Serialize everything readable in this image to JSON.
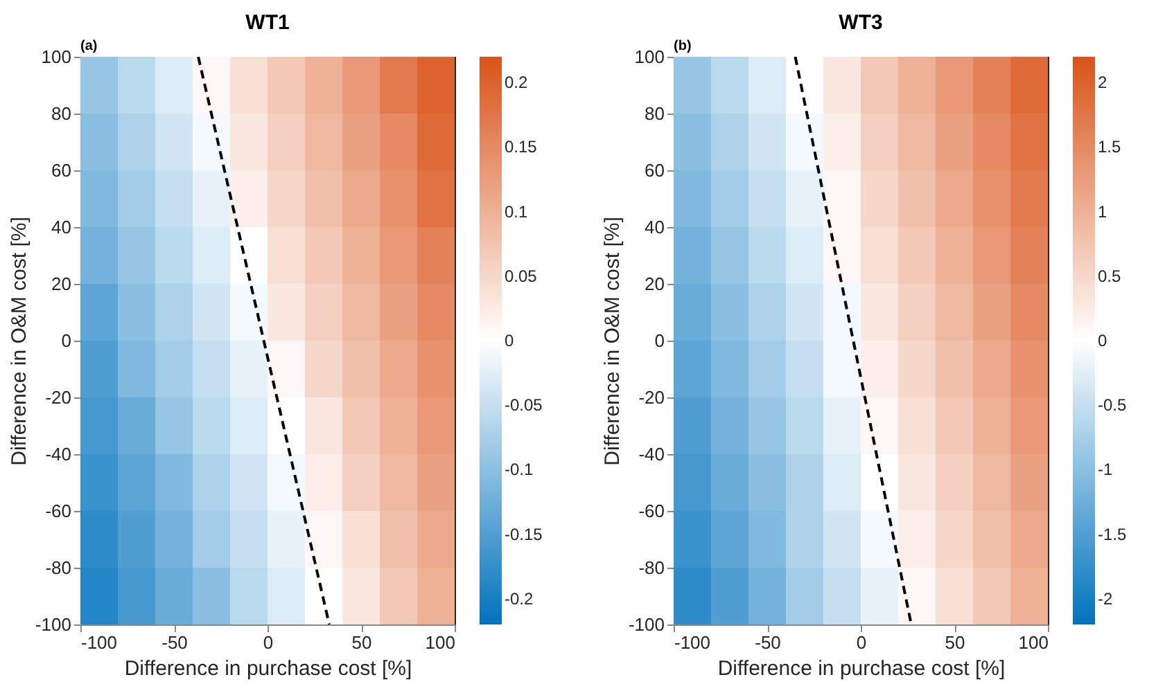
{
  "chart_data": [
    {
      "type": "heatmap",
      "title": "WT1",
      "annotations": [
        "(a)"
      ],
      "xlabel": "Difference in purchase cost [%]",
      "ylabel": "Difference in O&M cost [%]",
      "x": [
        -90,
        -70,
        -50,
        -30,
        -10,
        10,
        30,
        50,
        70,
        90
      ],
      "y": [
        90,
        70,
        50,
        30,
        10,
        -10,
        -30,
        -50,
        -70,
        -90
      ],
      "xlim": [
        -100,
        100
      ],
      "ylim": [
        -100,
        100
      ],
      "xticks": [
        -100,
        -50,
        0,
        50,
        100
      ],
      "yticks": [
        -100,
        -80,
        -60,
        -40,
        -20,
        0,
        20,
        40,
        60,
        80,
        100
      ],
      "clim": [
        -0.22,
        0.22
      ],
      "cticks": [
        -0.2,
        -0.15,
        -0.1,
        -0.05,
        0,
        0.05,
        0.1,
        0.15,
        0.2
      ],
      "colors": [
        "#0072bd",
        "#ffffff",
        "#d95319"
      ],
      "grid": false,
      "cells": [
        [
          -0.09,
          -0.06,
          -0.03,
          0.01,
          0.04,
          0.07,
          0.1,
          0.13,
          0.17,
          0.2
        ],
        [
          -0.1,
          -0.07,
          -0.04,
          -0.01,
          0.03,
          0.06,
          0.09,
          0.12,
          0.15,
          0.19
        ],
        [
          -0.11,
          -0.08,
          -0.05,
          -0.02,
          0.02,
          0.05,
          0.08,
          0.11,
          0.14,
          0.18
        ],
        [
          -0.12,
          -0.09,
          -0.06,
          -0.03,
          0.0,
          0.04,
          0.07,
          0.1,
          0.13,
          0.16
        ],
        [
          -0.14,
          -0.1,
          -0.07,
          -0.04,
          -0.01,
          0.03,
          0.06,
          0.09,
          0.12,
          0.15
        ],
        [
          -0.15,
          -0.11,
          -0.08,
          -0.05,
          -0.02,
          0.01,
          0.05,
          0.08,
          0.11,
          0.14
        ],
        [
          -0.16,
          -0.13,
          -0.09,
          -0.06,
          -0.03,
          0.0,
          0.03,
          0.07,
          0.1,
          0.13
        ],
        [
          -0.17,
          -0.14,
          -0.11,
          -0.07,
          -0.04,
          -0.01,
          0.02,
          0.06,
          0.09,
          0.12
        ],
        [
          -0.18,
          -0.15,
          -0.12,
          -0.08,
          -0.05,
          -0.02,
          0.01,
          0.04,
          0.08,
          0.11
        ],
        [
          -0.19,
          -0.16,
          -0.13,
          -0.1,
          -0.06,
          -0.03,
          0.0,
          0.03,
          0.07,
          0.1
        ]
      ],
      "series": [
        {
          "type": "line",
          "x": [
            -37,
            33
          ],
          "values": [
            100,
            -100
          ],
          "color": "#000000",
          "line_style": "dashed"
        }
      ]
    },
    {
      "type": "heatmap",
      "title": "WT3",
      "annotations": [
        "(b)"
      ],
      "xlabel": "Difference in purchase cost [%]",
      "ylabel": "Difference in O&M cost [%]",
      "x": [
        -90,
        -70,
        -50,
        -30,
        -10,
        10,
        30,
        50,
        70,
        90
      ],
      "y": [
        90,
        70,
        50,
        30,
        10,
        -10,
        -30,
        -50,
        -70,
        -90
      ],
      "xlim": [
        -100,
        100
      ],
      "ylim": [
        -100,
        100
      ],
      "xticks": [
        -100,
        -50,
        0,
        50,
        100
      ],
      "yticks": [
        -100,
        -80,
        -60,
        -40,
        -20,
        0,
        20,
        40,
        60,
        80,
        100
      ],
      "clim": [
        -2.2,
        2.2
      ],
      "cticks": [
        -2,
        -1.5,
        -1,
        -0.5,
        0,
        0.5,
        1,
        1.5,
        2
      ],
      "colors": [
        "#0072bd",
        "#ffffff",
        "#d95319"
      ],
      "grid": false,
      "cells": [
        [
          -0.9,
          -0.6,
          -0.3,
          0.0,
          0.3,
          0.7,
          1.0,
          1.3,
          1.6,
          1.9
        ],
        [
          -1.0,
          -0.7,
          -0.4,
          -0.1,
          0.2,
          0.6,
          0.9,
          1.2,
          1.5,
          1.8
        ],
        [
          -1.1,
          -0.8,
          -0.5,
          -0.2,
          0.1,
          0.5,
          0.8,
          1.1,
          1.4,
          1.7
        ],
        [
          -1.2,
          -0.9,
          -0.6,
          -0.3,
          0.1,
          0.4,
          0.7,
          1.0,
          1.3,
          1.6
        ],
        [
          -1.3,
          -1.0,
          -0.7,
          -0.4,
          -0.1,
          0.3,
          0.6,
          0.9,
          1.2,
          1.5
        ],
        [
          -1.4,
          -1.1,
          -0.8,
          -0.5,
          -0.1,
          0.2,
          0.5,
          0.8,
          1.1,
          1.4
        ],
        [
          -1.5,
          -1.2,
          -0.9,
          -0.6,
          -0.2,
          0.1,
          0.4,
          0.7,
          1.0,
          1.3
        ],
        [
          -1.6,
          -1.3,
          -1.0,
          -0.7,
          -0.3,
          0.0,
          0.3,
          0.6,
          0.9,
          1.2
        ],
        [
          -1.7,
          -1.4,
          -1.1,
          -0.7,
          -0.4,
          -0.1,
          0.2,
          0.5,
          0.8,
          1.1
        ],
        [
          -1.8,
          -1.5,
          -1.2,
          -0.8,
          -0.5,
          -0.2,
          0.1,
          0.4,
          0.7,
          1.0
        ]
      ],
      "series": [
        {
          "type": "line",
          "x": [
            -35,
            27
          ],
          "values": [
            100,
            -100
          ],
          "color": "#000000",
          "line_style": "dashed"
        }
      ]
    }
  ]
}
